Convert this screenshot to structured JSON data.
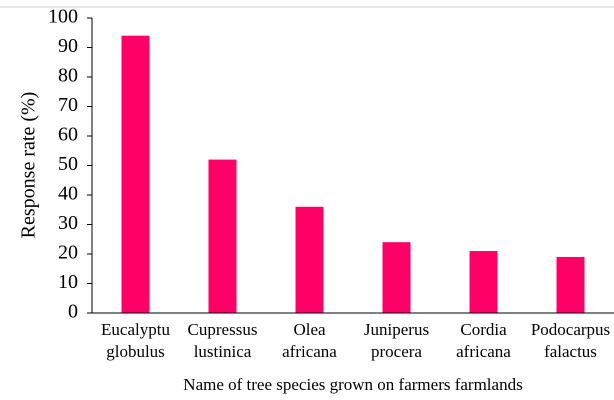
{
  "chart_data": {
    "type": "bar",
    "xlabel": "Name of tree species  grown on farmers farmlands",
    "ylabel": "Response rate (%)",
    "categories": [
      "Eucalyptu\nglobulus",
      "Cupressus\nlustinica",
      "Olea\nafricana",
      "Juniperus\nprocera",
      "Cordia\nafricana",
      "Podocarpus\nfalactus"
    ],
    "values": [
      94,
      52,
      36,
      24,
      21,
      19
    ],
    "color": "#ff0066",
    "ylim": [
      0,
      100
    ],
    "yticks": [
      0,
      10,
      20,
      30,
      40,
      50,
      60,
      70,
      80,
      90,
      100
    ],
    "grid": false
  }
}
